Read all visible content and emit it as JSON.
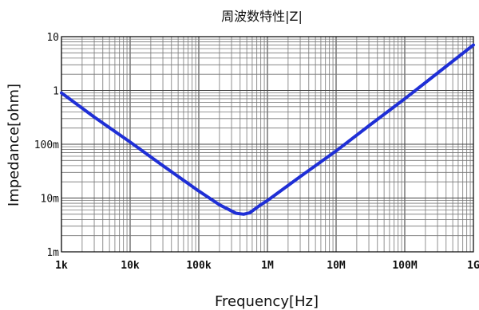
{
  "chart_data": {
    "type": "line",
    "title": "周波数特性|Z|",
    "xlabel": "Frequency[Hz]",
    "ylabel": "Impedance[ohm]",
    "x_scale": "log",
    "y_scale": "log",
    "xlim": [
      1000,
      1000000000
    ],
    "ylim": [
      0.001,
      10
    ],
    "x_tick_labels": [
      "1k",
      "10k",
      "100k",
      "1M",
      "10M",
      "100M",
      "1G"
    ],
    "y_tick_labels": [
      "10",
      "1",
      "100m",
      "10m",
      "1m"
    ],
    "grid": true,
    "line_color": "#1f2fd6",
    "series": [
      {
        "x": [
          1000,
          3000,
          10000,
          30000,
          100000,
          200000,
          350000,
          450000,
          550000,
          800000,
          1000000,
          3000000,
          10000000,
          30000000,
          100000000,
          300000000,
          1000000000
        ],
        "y": [
          0.9,
          0.32,
          0.11,
          0.04,
          0.0135,
          0.0075,
          0.0052,
          0.005,
          0.0053,
          0.0075,
          0.009,
          0.025,
          0.075,
          0.22,
          0.7,
          2.1,
          7.0
        ]
      }
    ]
  }
}
